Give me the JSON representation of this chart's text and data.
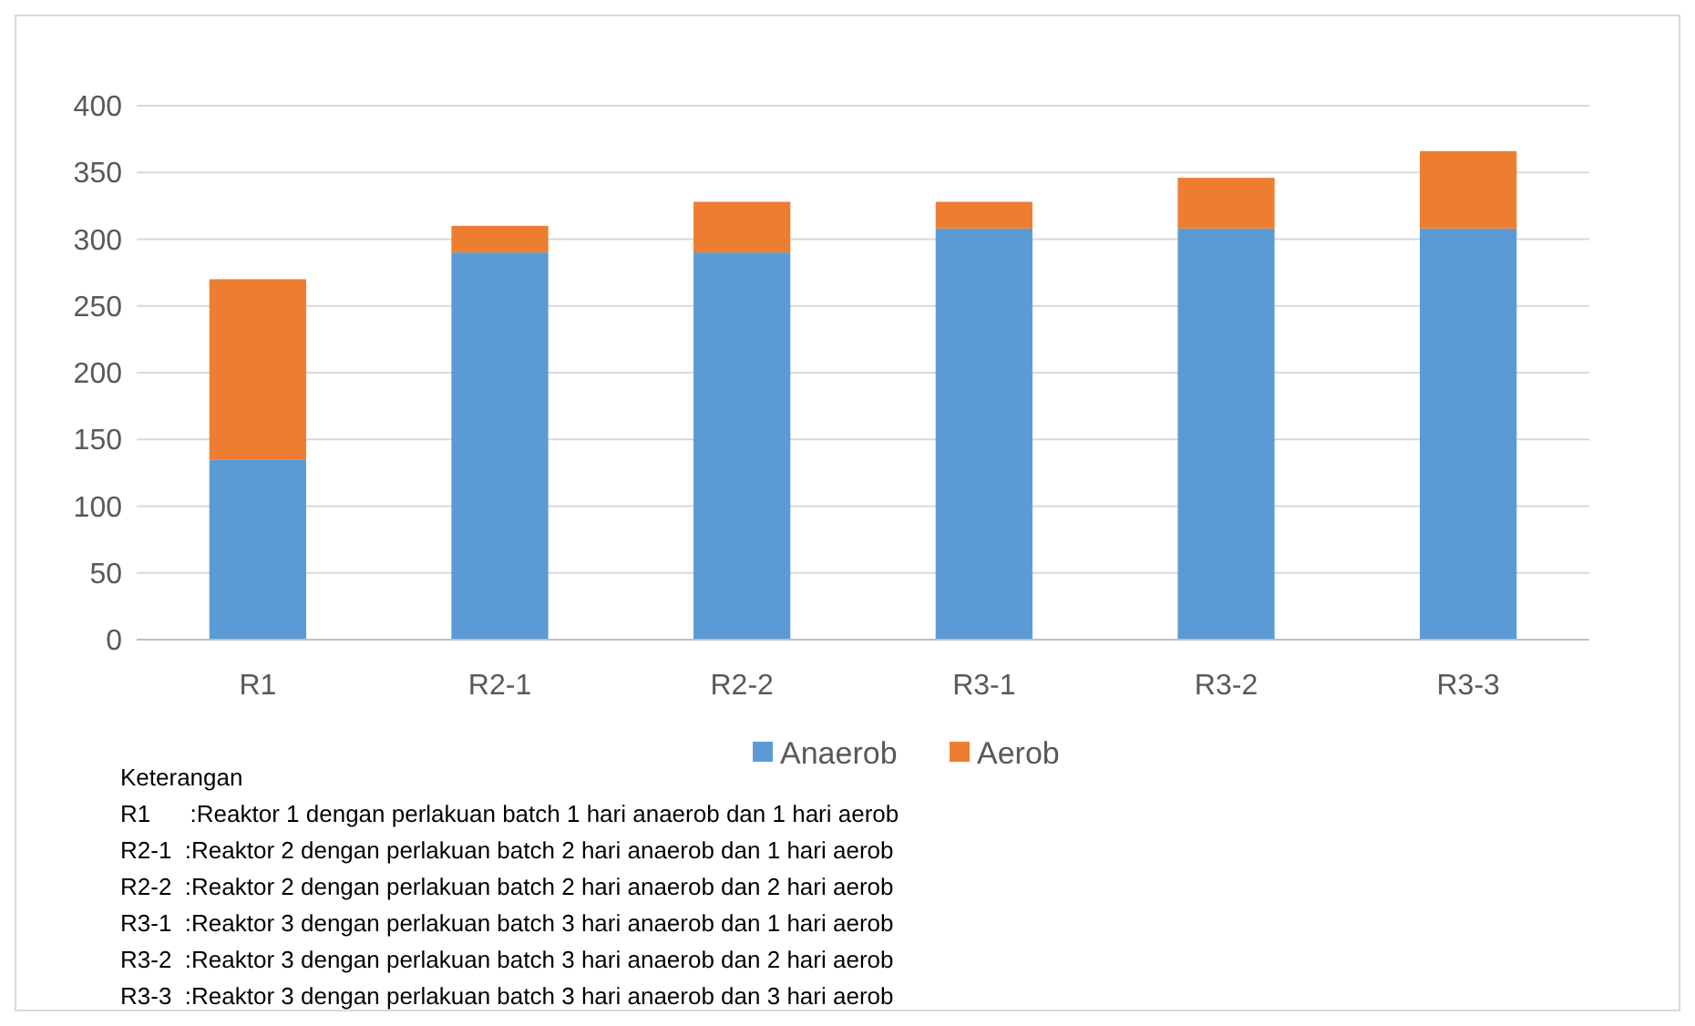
{
  "chart_data": {
    "type": "bar",
    "stacked": true,
    "categories": [
      "R1",
      "R2-1",
      "R2-2",
      "R3-1",
      "R3-2",
      "R3-3"
    ],
    "series": [
      {
        "name": "Anaerob",
        "color": "#5b9bd5",
        "values": [
          135,
          290,
          290,
          308,
          308,
          308
        ]
      },
      {
        "name": "Aerob",
        "color": "#ed7d31",
        "values": [
          135,
          20,
          38,
          20,
          38,
          58
        ]
      }
    ],
    "ylim": [
      0,
      400
    ],
    "yticks": [
      0,
      50,
      100,
      150,
      200,
      250,
      300,
      350,
      400
    ],
    "grid": "y",
    "legend": "bottom",
    "annotations": [
      "Keterangan",
      "R1      :Reaktor 1 dengan perlakuan batch 1 hari anaerob dan 1 hari aerob",
      "R2-1  :Reaktor 2 dengan perlakuan batch 2 hari anaerob dan 1 hari aerob",
      "R2-2  :Reaktor 2 dengan perlakuan batch 2 hari anaerob dan 2 hari aerob",
      "R3-1  :Reaktor 3 dengan perlakuan batch 3 hari anaerob dan 1 hari aerob",
      "R3-2  :Reaktor 3 dengan perlakuan batch 3 hari anaerob dan 2 hari aerob",
      "R3-3  :Reaktor 3 dengan perlakuan batch 3 hari anaerob dan 3 hari aerob"
    ]
  }
}
